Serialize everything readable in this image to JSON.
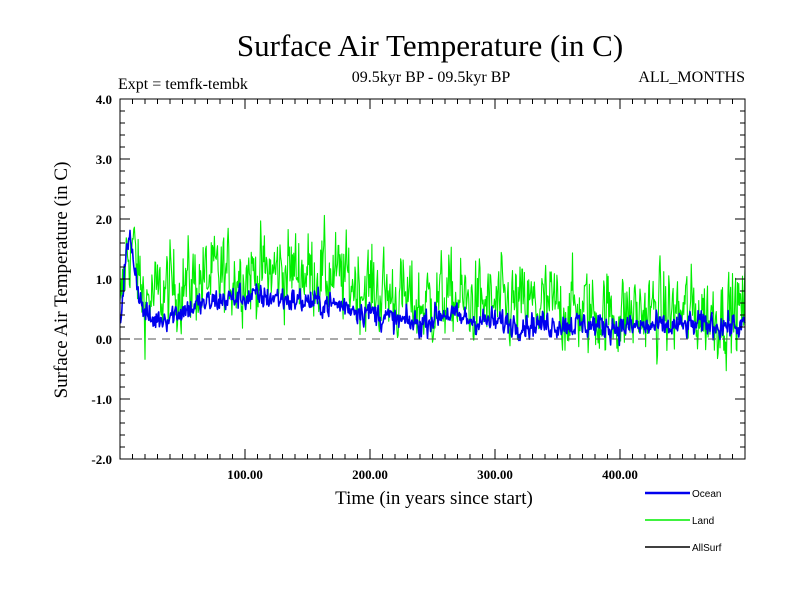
{
  "chart_data": {
    "type": "line",
    "title": "Surface Air Temperature (in C)",
    "subtitle_left": "Expt = temfk-tembk",
    "subtitle_center": "09.5kyr BP - 09.5kyr BP",
    "subtitle_right": "ALL_MONTHS",
    "xlabel": "Time (in years since start)",
    "ylabel": "Surface Air Temperature (in C)",
    "xlim": [
      0,
      500
    ],
    "ylim": [
      -2.0,
      4.0
    ],
    "x_ticks": [
      100,
      200,
      300,
      400
    ],
    "x_tick_labels": [
      "100.00",
      "200.00",
      "300.00",
      "400.00"
    ],
    "y_ticks": [
      -2.0,
      -1.0,
      0.0,
      1.0,
      2.0,
      3.0,
      4.0
    ],
    "y_tick_labels": [
      "-2.0",
      "-1.0",
      "0.0",
      "1.0",
      "2.0",
      "3.0",
      "4.0"
    ],
    "reference_line": 0.0,
    "legend_position": "bottom-right",
    "series": [
      {
        "name": "Land",
        "color": "#00ee00",
        "noise": 0.55,
        "envelope": {
          "x": [
            0,
            5,
            10,
            15,
            20,
            30,
            40,
            60,
            80,
            100,
            120,
            140,
            160,
            180,
            200,
            220,
            240,
            260,
            280,
            300,
            320,
            340,
            360,
            380,
            400,
            420,
            440,
            460,
            480,
            500
          ],
          "y": [
            0.3,
            1.4,
            1.6,
            1.0,
            0.65,
            0.7,
            0.85,
            0.95,
            1.05,
            1.1,
            1.1,
            1.15,
            1.1,
            1.0,
            0.85,
            0.7,
            0.55,
            0.7,
            0.6,
            0.55,
            0.55,
            0.55,
            0.5,
            0.45,
            0.4,
            0.45,
            0.45,
            0.45,
            0.4,
            0.5
          ]
        }
      },
      {
        "name": "Ocean",
        "color": "#0000ee",
        "noise": 0.17,
        "envelope": {
          "x": [
            0,
            4,
            8,
            10,
            14,
            18,
            25,
            40,
            60,
            80,
            100,
            120,
            140,
            160,
            180,
            200,
            220,
            240,
            260,
            270,
            290,
            320,
            360,
            400,
            440,
            470,
            500
          ],
          "y": [
            0.2,
            1.3,
            1.65,
            1.5,
            0.9,
            0.5,
            0.3,
            0.4,
            0.55,
            0.65,
            0.7,
            0.7,
            0.65,
            0.6,
            0.55,
            0.45,
            0.3,
            0.25,
            0.45,
            0.35,
            0.3,
            0.25,
            0.25,
            0.2,
            0.2,
            0.25,
            0.2
          ]
        }
      },
      {
        "name": "AllSurf",
        "color": "#000000",
        "noise": 0,
        "envelope": null
      }
    ]
  }
}
